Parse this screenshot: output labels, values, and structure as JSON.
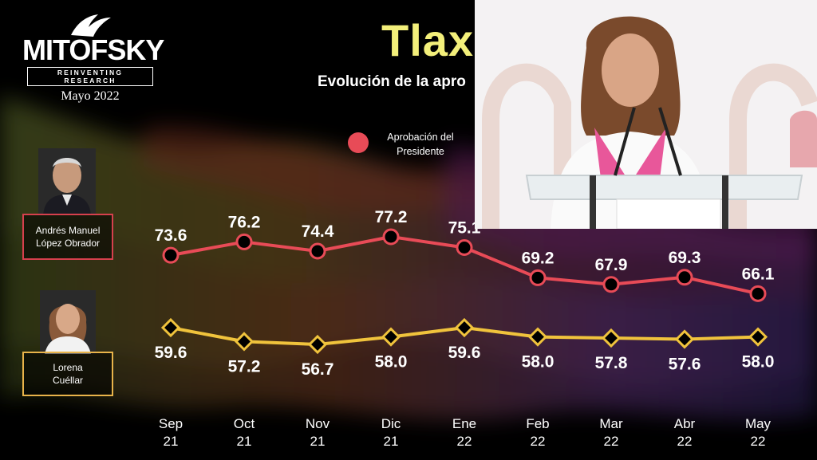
{
  "header": {
    "logo_text": "MITOFSKY",
    "logo_tagline": "REINVENTING RESEARCH",
    "date": "Mayo 2022",
    "title": "Tlax",
    "subtitle": "Evolución de la apro"
  },
  "legend": {
    "label": "Aprobación del Presidente",
    "color": "#e84b57"
  },
  "people": [
    {
      "name": "Andrés Manuel López Obrador",
      "line1": "Andrés Manuel",
      "line2": "López Obrador",
      "color": "#d6404d",
      "icon": "portrait-icon"
    },
    {
      "name": "Lorena Cuéllar",
      "line1": "Lorena",
      "line2": "Cuéllar",
      "color": "#e8b34a",
      "icon": "portrait-icon"
    }
  ],
  "chart_data": {
    "type": "line",
    "categories": [
      [
        "Sep",
        "21"
      ],
      [
        "Oct",
        "21"
      ],
      [
        "Nov",
        "21"
      ],
      [
        "Dic",
        "21"
      ],
      [
        "Ene",
        "22"
      ],
      [
        "Feb",
        "22"
      ],
      [
        "Mar",
        "22"
      ],
      [
        "Abr",
        "22"
      ],
      [
        "May",
        "22"
      ]
    ],
    "series": [
      {
        "name": "Andrés Manuel López Obrador",
        "color": "#e84b57",
        "marker": "circle",
        "values": [
          73.6,
          76.2,
          74.4,
          77.2,
          75.1,
          69.2,
          67.9,
          69.3,
          66.1
        ],
        "labels": [
          "73.6",
          "76.2",
          "74.4",
          "77.2",
          "75.1",
          "69.2",
          "67.9",
          "69.3",
          "66.1"
        ]
      },
      {
        "name": "Lorena Cuéllar",
        "color": "#f0c33c",
        "marker": "diamond",
        "values": [
          59.6,
          57.2,
          56.7,
          58.0,
          59.6,
          58.0,
          57.8,
          57.6,
          58.0
        ],
        "labels": [
          "59.6",
          "57.2",
          "56.7",
          "58.0",
          "59.6",
          "58.0",
          "57.8",
          "57.6",
          "58.0"
        ]
      }
    ],
    "grid": false,
    "legend_position": "top"
  },
  "photo": {
    "icon": "speaker-photo-icon"
  }
}
